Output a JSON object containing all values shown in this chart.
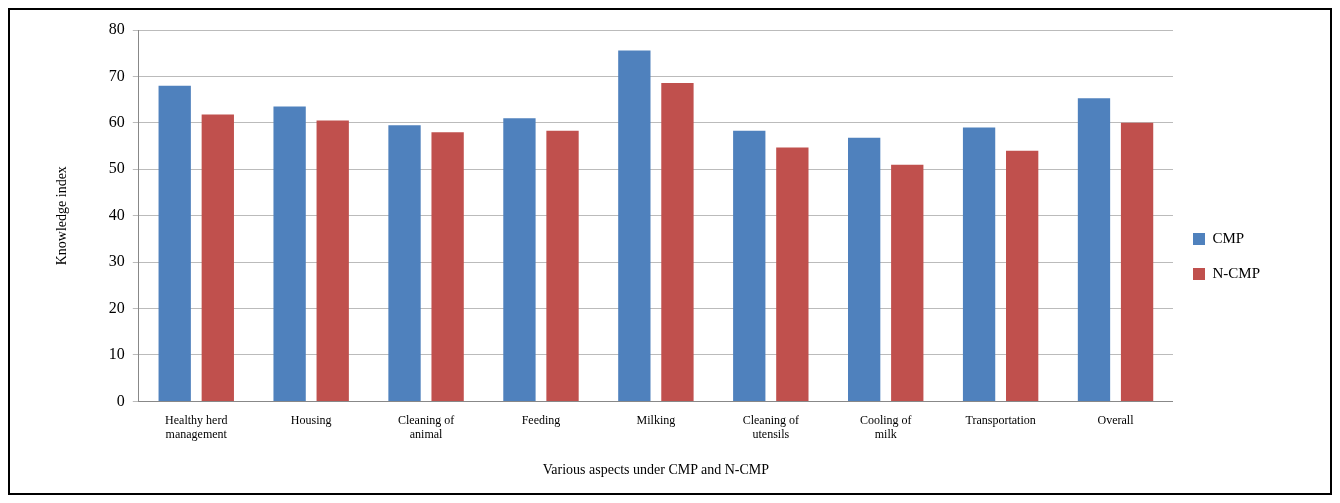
{
  "chart_data": {
    "type": "bar",
    "xlabel": "Various aspects under CMP and N-CMP",
    "ylabel": "Knowledge index",
    "categories": [
      "Healthy herd management",
      "Housing",
      "Cleaning of animal",
      "Feeding",
      "Milking",
      "Cleaning of utensils",
      "Cooling of milk",
      "Transportation",
      "Overall"
    ],
    "series": [
      {
        "name": "CMP",
        "color": "#4f81bd",
        "values": [
          68,
          63.5,
          59.5,
          61,
          75.6,
          58.3,
          56.8,
          59,
          65.3
        ]
      },
      {
        "name": "N-CMP",
        "color": "#c0504d",
        "values": [
          61.8,
          60.5,
          58,
          58.3,
          68.6,
          54.7,
          51,
          54,
          60
        ]
      }
    ],
    "ylim": [
      0,
      80
    ],
    "yticks": [
      0,
      10,
      20,
      30,
      40,
      50,
      60,
      70,
      80
    ],
    "grid": "y",
    "legend": "right"
  }
}
